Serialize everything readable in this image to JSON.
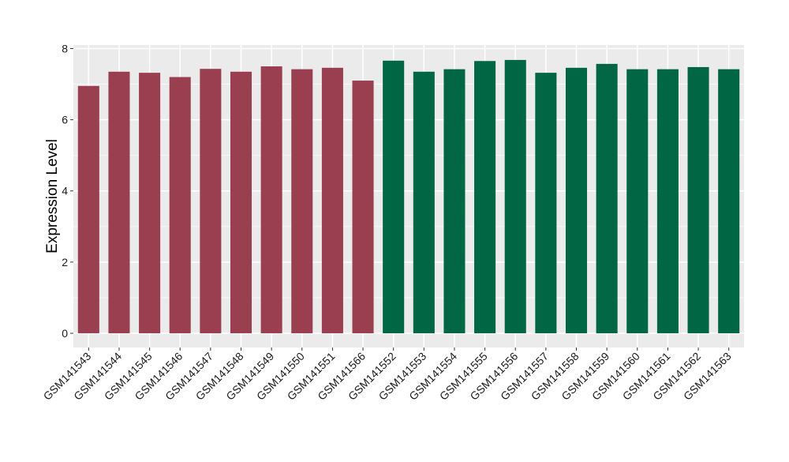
{
  "chart_data": {
    "type": "bar",
    "title": "",
    "xlabel": "",
    "ylabel": "Expression Level",
    "ylim": [
      -0.4,
      8.1
    ],
    "yticks": [
      0,
      2,
      4,
      6,
      8
    ],
    "grid": true,
    "legend": "none",
    "categories": [
      "GSM141543",
      "GSM141544",
      "GSM141545",
      "GSM141546",
      "GSM141547",
      "GSM141548",
      "GSM141549",
      "GSM141550",
      "GSM141551",
      "GSM141566",
      "GSM141552",
      "GSM141553",
      "GSM141554",
      "GSM141555",
      "GSM141556",
      "GSM141557",
      "GSM141558",
      "GSM141559",
      "GSM141560",
      "GSM141561",
      "GSM141562",
      "GSM141563"
    ],
    "values": [
      6.95,
      7.35,
      7.32,
      7.2,
      7.43,
      7.35,
      7.5,
      7.42,
      7.46,
      7.1,
      7.66,
      7.35,
      7.42,
      7.65,
      7.68,
      7.32,
      7.46,
      7.57,
      7.42,
      7.42,
      7.48,
      7.42
    ],
    "groups": [
      0,
      0,
      0,
      0,
      0,
      0,
      0,
      0,
      0,
      0,
      1,
      1,
      1,
      1,
      1,
      1,
      1,
      1,
      1,
      1,
      1,
      1
    ],
    "colors": [
      "#9a3f50",
      "#006644"
    ],
    "panel_background": "#ebebeb",
    "gridline_color": "#ffffff"
  }
}
